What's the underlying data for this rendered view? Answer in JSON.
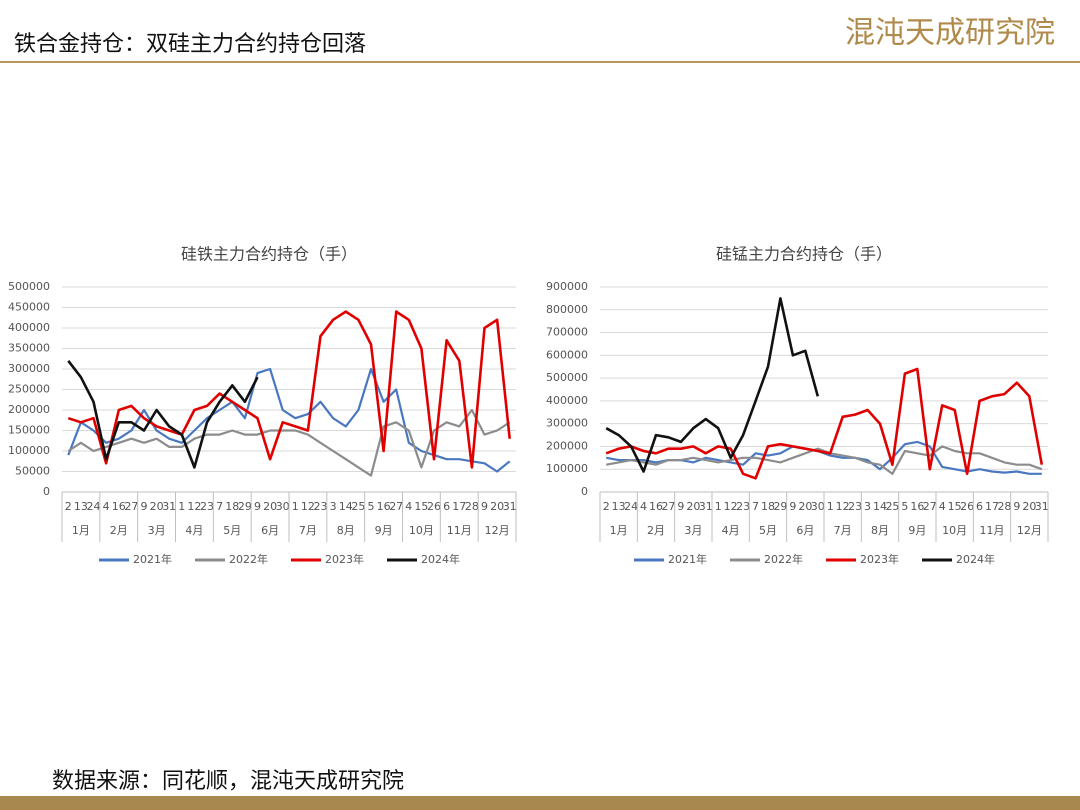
{
  "header": {
    "title": "铁合金持仓：双硅主力合约持仓回落",
    "logo": "混沌天成研究院"
  },
  "source": "数据来源：同花顺，混沌天成研究院",
  "chart_data": [
    {
      "type": "line",
      "title": "硅铁主力合约持仓（手）",
      "categories": [
        "2",
        "13",
        "24",
        "4",
        "16",
        "27",
        "9",
        "20",
        "31",
        "1",
        "12",
        "23",
        "7",
        "18",
        "29",
        "9",
        "20",
        "30",
        "1",
        "12",
        "23",
        "3",
        "14",
        "25",
        "5",
        "16",
        "27",
        "4",
        "15",
        "26",
        "6",
        "17",
        "28",
        "9",
        "20",
        "31"
      ],
      "months": [
        "1月",
        "2月",
        "3月",
        "4月",
        "5月",
        "6月",
        "7月",
        "8月",
        "9月",
        "10月",
        "11月",
        "12月"
      ],
      "ylim": [
        0,
        500000
      ],
      "yticks": [
        0,
        50000,
        100000,
        150000,
        200000,
        250000,
        300000,
        350000,
        400000,
        450000,
        500000
      ],
      "grid": true,
      "series": [
        {
          "name": "2021年",
          "color": "#4a78c0",
          "values": [
            90000,
            170000,
            150000,
            120000,
            130000,
            150000,
            200000,
            150000,
            130000,
            120000,
            150000,
            180000,
            200000,
            220000,
            180000,
            290000,
            300000,
            200000,
            180000,
            190000,
            220000,
            180000,
            160000,
            200000,
            300000,
            220000,
            250000,
            120000,
            100000,
            90000,
            80000,
            80000,
            75000,
            70000,
            50000,
            75000
          ]
        },
        {
          "name": "2022年",
          "color": "#8c8c8c",
          "values": [
            100000,
            120000,
            100000,
            110000,
            120000,
            130000,
            120000,
            130000,
            110000,
            110000,
            130000,
            140000,
            140000,
            150000,
            140000,
            140000,
            150000,
            150000,
            150000,
            140000,
            120000,
            100000,
            80000,
            60000,
            40000,
            160000,
            170000,
            150000,
            60000,
            150000,
            170000,
            160000,
            200000,
            140000,
            150000,
            170000
          ]
        },
        {
          "name": "2023年",
          "color": "#e00000",
          "values": [
            180000,
            170000,
            180000,
            70000,
            200000,
            210000,
            180000,
            160000,
            150000,
            140000,
            200000,
            210000,
            240000,
            220000,
            200000,
            180000,
            80000,
            170000,
            160000,
            150000,
            380000,
            420000,
            440000,
            420000,
            360000,
            100000,
            440000,
            420000,
            350000,
            80000,
            370000,
            320000,
            60000,
            400000,
            420000,
            130000
          ]
        },
        {
          "name": "2024年",
          "color": "#111111",
          "values": [
            320000,
            280000,
            220000,
            80000,
            170000,
            170000,
            150000,
            200000,
            160000,
            140000,
            60000,
            170000,
            220000,
            260000,
            220000,
            280000,
            null,
            null,
            null,
            null,
            null,
            null,
            null,
            null,
            null,
            null,
            null,
            null,
            null,
            null,
            null,
            null,
            null,
            null,
            null,
            null
          ]
        }
      ]
    },
    {
      "type": "line",
      "title": "硅锰主力合约持仓（手）",
      "categories": [
        "2",
        "13",
        "24",
        "4",
        "16",
        "27",
        "9",
        "20",
        "31",
        "1",
        "12",
        "23",
        "7",
        "18",
        "29",
        "9",
        "20",
        "30",
        "1",
        "12",
        "23",
        "3",
        "14",
        "25",
        "5",
        "16",
        "27",
        "4",
        "15",
        "26",
        "6",
        "17",
        "28",
        "9",
        "20",
        "31"
      ],
      "months": [
        "1月",
        "2月",
        "3月",
        "4月",
        "5月",
        "6月",
        "7月",
        "8月",
        "9月",
        "10月",
        "11月",
        "12月"
      ],
      "ylim": [
        0,
        900000
      ],
      "yticks": [
        0,
        100000,
        200000,
        300000,
        400000,
        500000,
        600000,
        700000,
        800000,
        900000
      ],
      "grid": true,
      "series": [
        {
          "name": "2021年",
          "color": "#4a78c0",
          "values": [
            150000,
            140000,
            140000,
            140000,
            130000,
            140000,
            140000,
            130000,
            150000,
            140000,
            130000,
            120000,
            170000,
            160000,
            170000,
            200000,
            190000,
            180000,
            160000,
            150000,
            150000,
            140000,
            100000,
            150000,
            210000,
            220000,
            200000,
            110000,
            100000,
            90000,
            100000,
            90000,
            85000,
            90000,
            80000,
            80000
          ]
        },
        {
          "name": "2022年",
          "color": "#8c8c8c",
          "values": [
            120000,
            130000,
            140000,
            130000,
            120000,
            140000,
            140000,
            150000,
            140000,
            130000,
            140000,
            150000,
            150000,
            140000,
            130000,
            150000,
            170000,
            190000,
            170000,
            160000,
            150000,
            130000,
            120000,
            80000,
            180000,
            170000,
            160000,
            200000,
            180000,
            170000,
            170000,
            150000,
            130000,
            120000,
            120000,
            100000
          ]
        },
        {
          "name": "2023年",
          "color": "#e00000",
          "values": [
            170000,
            190000,
            200000,
            180000,
            170000,
            190000,
            190000,
            200000,
            170000,
            200000,
            190000,
            80000,
            60000,
            200000,
            210000,
            200000,
            190000,
            180000,
            170000,
            330000,
            340000,
            360000,
            300000,
            120000,
            520000,
            540000,
            100000,
            380000,
            360000,
            80000,
            400000,
            420000,
            430000,
            480000,
            420000,
            120000
          ]
        },
        {
          "name": "2024年",
          "color": "#111111",
          "values": [
            280000,
            250000,
            200000,
            90000,
            250000,
            240000,
            220000,
            280000,
            320000,
            280000,
            150000,
            250000,
            400000,
            550000,
            850000,
            600000,
            620000,
            420000,
            null,
            null,
            null,
            null,
            null,
            null,
            null,
            null,
            null,
            null,
            null,
            null,
            null,
            null,
            null,
            null,
            null,
            null
          ]
        }
      ]
    }
  ]
}
